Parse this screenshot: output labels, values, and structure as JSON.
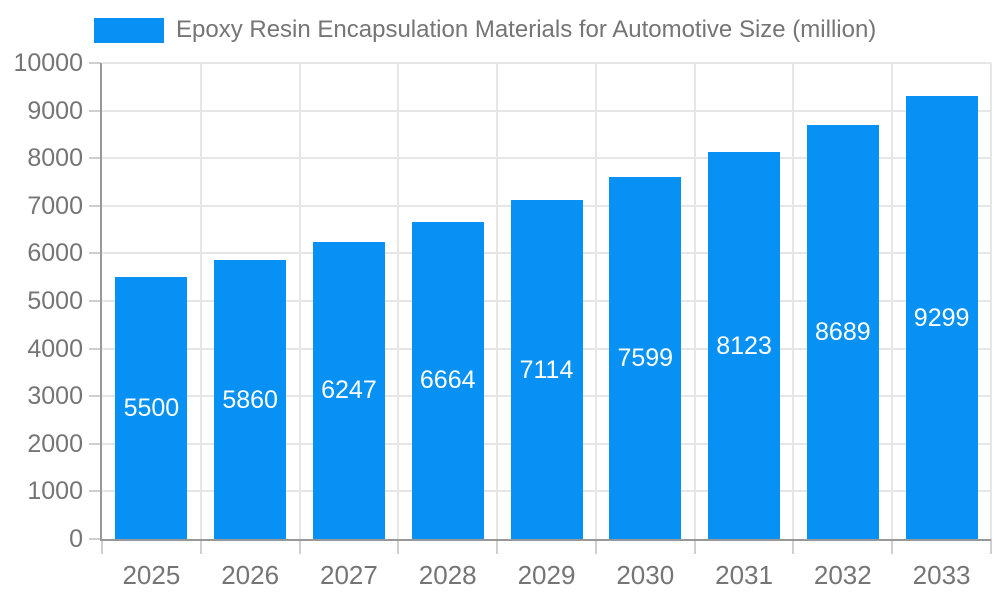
{
  "chart_data": {
    "type": "bar",
    "title": "Epoxy Resin Encapsulation Materials for Automotive Size (million)",
    "legend_entries": [
      "Epoxy Resin Encapsulation Materials for Automotive Size (million)"
    ],
    "legend_position": "top",
    "categories": [
      "2025",
      "2026",
      "2027",
      "2028",
      "2029",
      "2030",
      "2031",
      "2032",
      "2033"
    ],
    "series": [
      {
        "name": "Epoxy Resin Encapsulation Materials for Automotive Size (million)",
        "values": [
          5500,
          5860,
          6247,
          6664,
          7114,
          7599,
          8123,
          8689,
          9299
        ]
      }
    ],
    "values": [
      5500,
      5860,
      6247,
      6664,
      7114,
      7599,
      8123,
      8689,
      9299
    ],
    "data_labels": [
      "5500",
      "5860",
      "6247",
      "6664",
      "7114",
      "7599",
      "8123",
      "8689",
      "9299"
    ],
    "xlabel": "",
    "ylabel": "",
    "ylim": [
      0,
      10000
    ],
    "ytick_interval": 1000,
    "yticks": [
      0,
      1000,
      2000,
      3000,
      4000,
      5000,
      6000,
      7000,
      8000,
      9000,
      10000
    ],
    "grid": true,
    "bar_color": "#0791f5",
    "bar_label_color": "#ffffff",
    "axis_text_color": "#757575",
    "grid_color": "#e6e6e6",
    "axis_line_color": "#989898",
    "tick_color": "#cfcfcf",
    "background_color": "#ffffff"
  }
}
